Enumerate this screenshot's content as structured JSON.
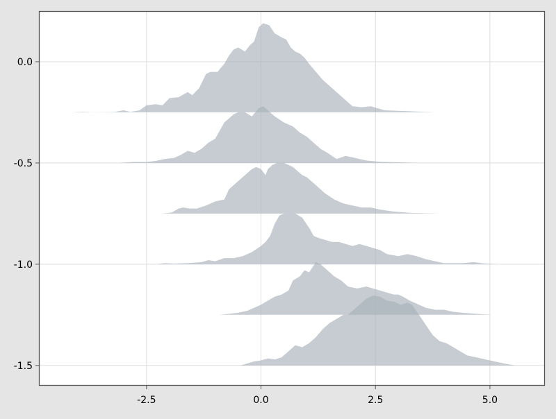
{
  "chart_data": {
    "type": "area",
    "subtype": "ridgeline",
    "title": "",
    "xlabel": "",
    "ylabel": "",
    "xlim": [
      -4.85,
      6.2
    ],
    "ylim": [
      -1.6,
      0.25
    ],
    "x_ticks": [
      -2.5,
      0.0,
      2.5,
      5.0
    ],
    "x_tick_labels": [
      "-2.5",
      "0.0",
      "2.5",
      "5.0"
    ],
    "y_ticks": [
      0.0,
      -0.5,
      -1.0,
      -1.5
    ],
    "y_tick_labels": [
      "0.0",
      "-0.5",
      "-1.0",
      "-1.5"
    ],
    "grid": true,
    "fill_color": "#a7b1ba",
    "fill_opacity": 0.65,
    "background_color": "#ffffff",
    "figure_background_color": "#e5e5e5",
    "series": [
      {
        "baseline": -0.25,
        "points": [
          [
            -4.15,
            0
          ],
          [
            -3.9,
            0.003
          ],
          [
            -3.7,
            0.001
          ],
          [
            -3.2,
            0.002
          ],
          [
            -3.0,
            0.01
          ],
          [
            -2.85,
            0.002
          ],
          [
            -2.65,
            0.01
          ],
          [
            -2.5,
            0.035
          ],
          [
            -2.3,
            0.04
          ],
          [
            -2.15,
            0.035
          ],
          [
            -2.0,
            0.07
          ],
          [
            -1.8,
            0.075
          ],
          [
            -1.6,
            0.1
          ],
          [
            -1.5,
            0.085
          ],
          [
            -1.35,
            0.12
          ],
          [
            -1.2,
            0.19
          ],
          [
            -1.1,
            0.2
          ],
          [
            -0.95,
            0.2
          ],
          [
            -0.8,
            0.24
          ],
          [
            -0.7,
            0.28
          ],
          [
            -0.6,
            0.31
          ],
          [
            -0.5,
            0.32
          ],
          [
            -0.42,
            0.31
          ],
          [
            -0.35,
            0.3
          ],
          [
            -0.25,
            0.33
          ],
          [
            -0.15,
            0.35
          ],
          [
            -0.05,
            0.42
          ],
          [
            0.05,
            0.44
          ],
          [
            0.18,
            0.43
          ],
          [
            0.3,
            0.39
          ],
          [
            0.45,
            0.37
          ],
          [
            0.55,
            0.36
          ],
          [
            0.65,
            0.32
          ],
          [
            0.75,
            0.3
          ],
          [
            0.85,
            0.29
          ],
          [
            0.95,
            0.27
          ],
          [
            1.05,
            0.24
          ],
          [
            1.2,
            0.2
          ],
          [
            1.35,
            0.16
          ],
          [
            1.5,
            0.13
          ],
          [
            1.65,
            0.1
          ],
          [
            1.8,
            0.07
          ],
          [
            2.0,
            0.03
          ],
          [
            2.2,
            0.025
          ],
          [
            2.4,
            0.03
          ],
          [
            2.7,
            0.01
          ],
          [
            3.2,
            0.006
          ],
          [
            3.8,
            0
          ]
        ]
      },
      {
        "baseline": -0.5,
        "points": [
          [
            -3.1,
            0
          ],
          [
            -2.8,
            0.005
          ],
          [
            -2.5,
            0.005
          ],
          [
            -2.3,
            0.01
          ],
          [
            -2.1,
            0.02
          ],
          [
            -1.9,
            0.025
          ],
          [
            -1.75,
            0.04
          ],
          [
            -1.6,
            0.06
          ],
          [
            -1.45,
            0.05
          ],
          [
            -1.3,
            0.07
          ],
          [
            -1.15,
            0.1
          ],
          [
            -1.0,
            0.12
          ],
          [
            -0.9,
            0.16
          ],
          [
            -0.8,
            0.2
          ],
          [
            -0.7,
            0.22
          ],
          [
            -0.6,
            0.24
          ],
          [
            -0.5,
            0.25
          ],
          [
            -0.35,
            0.25
          ],
          [
            -0.2,
            0.23
          ],
          [
            -0.05,
            0.27
          ],
          [
            0.05,
            0.28
          ],
          [
            0.15,
            0.26
          ],
          [
            0.3,
            0.23
          ],
          [
            0.5,
            0.2
          ],
          [
            0.7,
            0.18
          ],
          [
            0.85,
            0.15
          ],
          [
            1.0,
            0.13
          ],
          [
            1.15,
            0.1
          ],
          [
            1.3,
            0.07
          ],
          [
            1.45,
            0.05
          ],
          [
            1.65,
            0.02
          ],
          [
            1.85,
            0.035
          ],
          [
            2.05,
            0.025
          ],
          [
            2.3,
            0.012
          ],
          [
            2.6,
            0.006
          ],
          [
            3.0,
            0.003
          ],
          [
            3.5,
            0
          ]
        ]
      },
      {
        "baseline": -0.75,
        "points": [
          [
            -2.15,
            0
          ],
          [
            -1.95,
            0.005
          ],
          [
            -1.8,
            0.025
          ],
          [
            -1.7,
            0.03
          ],
          [
            -1.55,
            0.025
          ],
          [
            -1.4,
            0.025
          ],
          [
            -1.2,
            0.04
          ],
          [
            -1.0,
            0.06
          ],
          [
            -0.8,
            0.07
          ],
          [
            -0.7,
            0.12
          ],
          [
            -0.6,
            0.14
          ],
          [
            -0.45,
            0.17
          ],
          [
            -0.3,
            0.2
          ],
          [
            -0.2,
            0.22
          ],
          [
            -0.1,
            0.23
          ],
          [
            0.0,
            0.22
          ],
          [
            0.1,
            0.19
          ],
          [
            0.15,
            0.22
          ],
          [
            0.25,
            0.24
          ],
          [
            0.35,
            0.25
          ],
          [
            0.5,
            0.25
          ],
          [
            0.6,
            0.24
          ],
          [
            0.7,
            0.23
          ],
          [
            0.8,
            0.21
          ],
          [
            0.9,
            0.19
          ],
          [
            1.0,
            0.18
          ],
          [
            1.2,
            0.14
          ],
          [
            1.4,
            0.1
          ],
          [
            1.6,
            0.07
          ],
          [
            1.8,
            0.05
          ],
          [
            2.0,
            0.04
          ],
          [
            2.2,
            0.03
          ],
          [
            2.4,
            0.03
          ],
          [
            2.6,
            0.02
          ],
          [
            2.9,
            0.01
          ],
          [
            3.3,
            0.003
          ],
          [
            3.9,
            0
          ]
        ]
      },
      {
        "baseline": -1.0,
        "points": [
          [
            -2.3,
            0
          ],
          [
            -2.1,
            0.005
          ],
          [
            -1.9,
            0.003
          ],
          [
            -1.6,
            0.005
          ],
          [
            -1.3,
            0.01
          ],
          [
            -1.15,
            0.02
          ],
          [
            -1.0,
            0.015
          ],
          [
            -0.8,
            0.03
          ],
          [
            -0.6,
            0.03
          ],
          [
            -0.4,
            0.04
          ],
          [
            -0.2,
            0.06
          ],
          [
            0.0,
            0.09
          ],
          [
            0.1,
            0.11
          ],
          [
            0.2,
            0.14
          ],
          [
            0.3,
            0.2
          ],
          [
            0.4,
            0.24
          ],
          [
            0.5,
            0.25
          ],
          [
            0.6,
            0.25
          ],
          [
            0.75,
            0.25
          ],
          [
            0.9,
            0.23
          ],
          [
            1.05,
            0.18
          ],
          [
            1.15,
            0.14
          ],
          [
            1.25,
            0.13
          ],
          [
            1.4,
            0.12
          ],
          [
            1.55,
            0.11
          ],
          [
            1.7,
            0.11
          ],
          [
            1.85,
            0.1
          ],
          [
            2.0,
            0.09
          ],
          [
            2.15,
            0.1
          ],
          [
            2.3,
            0.09
          ],
          [
            2.45,
            0.08
          ],
          [
            2.6,
            0.07
          ],
          [
            2.75,
            0.05
          ],
          [
            3.0,
            0.04
          ],
          [
            3.2,
            0.05
          ],
          [
            3.4,
            0.04
          ],
          [
            3.6,
            0.025
          ],
          [
            3.8,
            0.015
          ],
          [
            4.0,
            0.005
          ],
          [
            4.4,
            0.005
          ],
          [
            4.65,
            0.01
          ],
          [
            4.85,
            0.004
          ],
          [
            5.2,
            0
          ]
        ]
      },
      {
        "baseline": -1.25,
        "points": [
          [
            -0.9,
            0
          ],
          [
            -0.7,
            0.005
          ],
          [
            -0.5,
            0.01
          ],
          [
            -0.3,
            0.02
          ],
          [
            -0.1,
            0.04
          ],
          [
            0.0,
            0.05
          ],
          [
            0.15,
            0.07
          ],
          [
            0.3,
            0.09
          ],
          [
            0.45,
            0.1
          ],
          [
            0.6,
            0.12
          ],
          [
            0.7,
            0.17
          ],
          [
            0.85,
            0.19
          ],
          [
            0.95,
            0.22
          ],
          [
            1.05,
            0.21
          ],
          [
            1.2,
            0.26
          ],
          [
            1.3,
            0.25
          ],
          [
            1.45,
            0.22
          ],
          [
            1.6,
            0.19
          ],
          [
            1.75,
            0.17
          ],
          [
            1.9,
            0.14
          ],
          [
            2.1,
            0.13
          ],
          [
            2.3,
            0.14
          ],
          [
            2.45,
            0.13
          ],
          [
            2.6,
            0.12
          ],
          [
            2.75,
            0.11
          ],
          [
            2.9,
            0.1
          ],
          [
            3.0,
            0.1
          ],
          [
            3.1,
            0.09
          ],
          [
            3.25,
            0.07
          ],
          [
            3.35,
            0.06
          ],
          [
            3.45,
            0.05
          ],
          [
            3.6,
            0.035
          ],
          [
            3.8,
            0.025
          ],
          [
            4.0,
            0.025
          ],
          [
            4.2,
            0.015
          ],
          [
            4.4,
            0.01
          ],
          [
            4.7,
            0.005
          ],
          [
            5.05,
            0
          ]
        ]
      },
      {
        "baseline": -1.5,
        "points": [
          [
            -0.45,
            0
          ],
          [
            -0.3,
            0.01
          ],
          [
            -0.15,
            0.02
          ],
          [
            0.0,
            0.025
          ],
          [
            0.15,
            0.035
          ],
          [
            0.3,
            0.03
          ],
          [
            0.45,
            0.04
          ],
          [
            0.6,
            0.07
          ],
          [
            0.75,
            0.1
          ],
          [
            0.9,
            0.09
          ],
          [
            1.05,
            0.11
          ],
          [
            1.2,
            0.14
          ],
          [
            1.35,
            0.18
          ],
          [
            1.5,
            0.21
          ],
          [
            1.65,
            0.23
          ],
          [
            1.8,
            0.25
          ],
          [
            1.9,
            0.25
          ],
          [
            2.0,
            0.27
          ],
          [
            2.15,
            0.3
          ],
          [
            2.3,
            0.33
          ],
          [
            2.45,
            0.345
          ],
          [
            2.6,
            0.34
          ],
          [
            2.75,
            0.32
          ],
          [
            2.9,
            0.315
          ],
          [
            3.05,
            0.3
          ],
          [
            3.2,
            0.31
          ],
          [
            3.3,
            0.3
          ],
          [
            3.45,
            0.25
          ],
          [
            3.6,
            0.2
          ],
          [
            3.75,
            0.15
          ],
          [
            3.9,
            0.12
          ],
          [
            4.05,
            0.11
          ],
          [
            4.2,
            0.09
          ],
          [
            4.35,
            0.07
          ],
          [
            4.5,
            0.05
          ],
          [
            4.7,
            0.04
          ],
          [
            4.9,
            0.03
          ],
          [
            5.1,
            0.02
          ],
          [
            5.3,
            0.01
          ],
          [
            5.55,
            0
          ]
        ]
      }
    ]
  }
}
